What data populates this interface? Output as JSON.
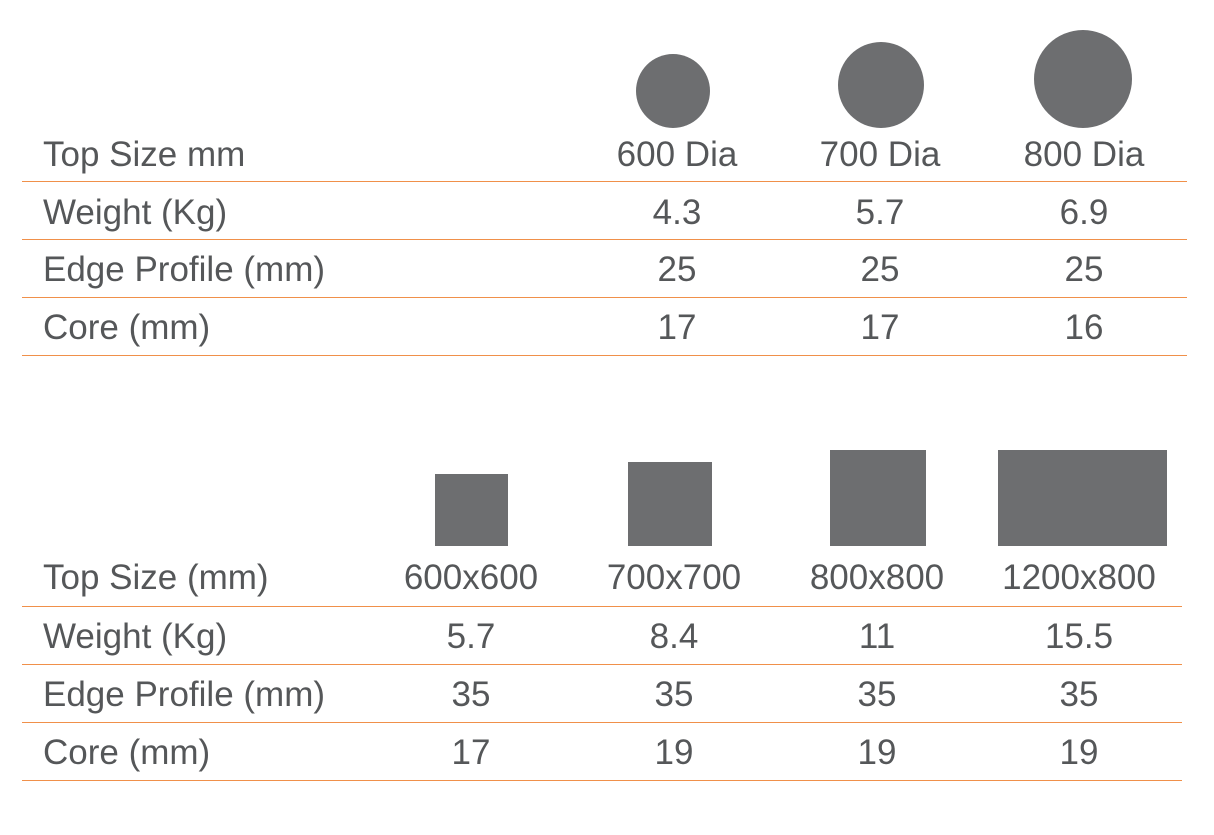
{
  "round_table": {
    "header": {
      "label": "Top Size mm",
      "sizes": [
        "600 Dia",
        "700 Dia",
        "800 Dia"
      ]
    },
    "rows": [
      {
        "label": "Weight (Kg)",
        "values": [
          "4.3",
          "5.7",
          "6.9"
        ]
      },
      {
        "label": "Edge Profile (mm)",
        "values": [
          "25",
          "25",
          "25"
        ]
      },
      {
        "label": "Core (mm)",
        "values": [
          "17",
          "17",
          "16"
        ]
      }
    ]
  },
  "rect_table": {
    "header": {
      "label": "Top Size (mm)",
      "sizes": [
        "600x600",
        "700x700",
        "800x800",
        "1200x800"
      ]
    },
    "rows": [
      {
        "label": "Weight (Kg)",
        "values": [
          "5.7",
          "8.4",
          "11",
          "15.5"
        ]
      },
      {
        "label": "Edge Profile (mm)",
        "values": [
          "35",
          "35",
          "35",
          "35"
        ]
      },
      {
        "label": "Core (mm)",
        "values": [
          "17",
          "19",
          "19",
          "19"
        ]
      }
    ]
  },
  "colors": {
    "text": "#555759",
    "shape": "#6d6e70",
    "rule": "#f0904a"
  }
}
